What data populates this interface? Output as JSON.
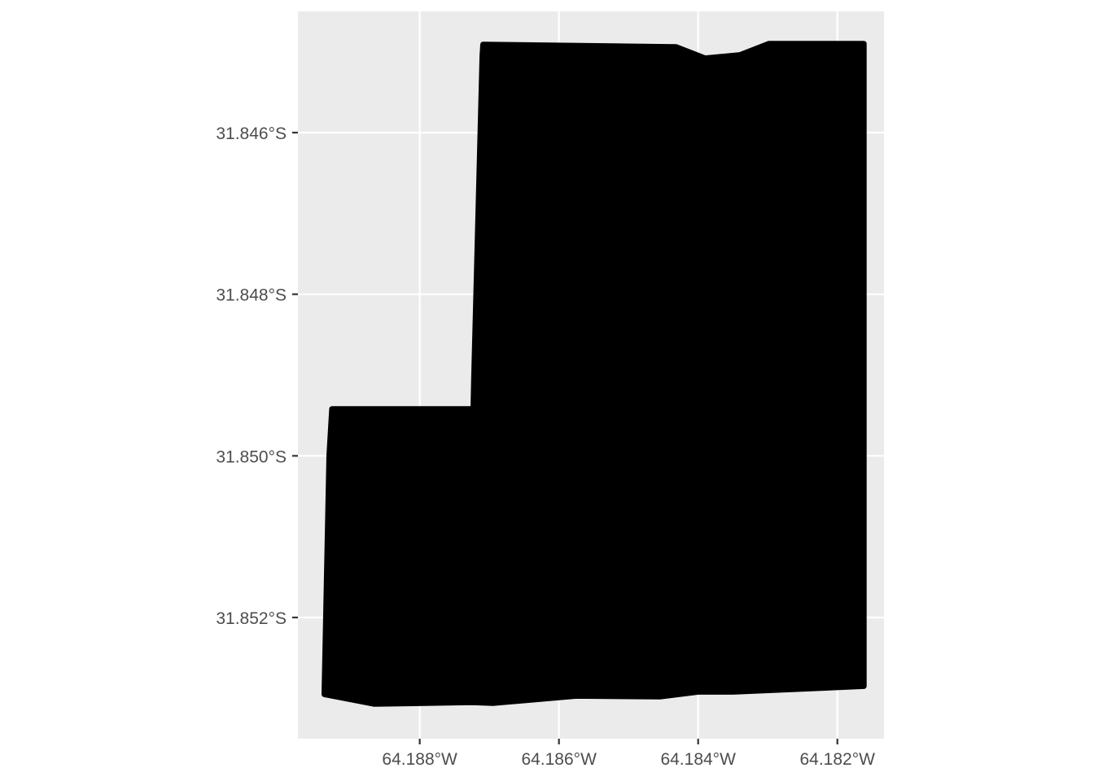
{
  "chart_data": {
    "type": "map",
    "title": "",
    "xlabel": "",
    "ylabel": "",
    "grid": true,
    "legend": "none",
    "colors": {
      "panel": "#ebebeb",
      "grid": "#ffffff",
      "fill": "#000000",
      "text": "#4d4d4d",
      "ticks": "#333333"
    },
    "x_axis": {
      "lim": [
        -64.18975,
        -64.18133
      ],
      "ticks": [
        -64.188,
        -64.186,
        -64.184,
        -64.182
      ],
      "tick_labels": [
        "64.188°W",
        "64.186°W",
        "64.184°W",
        "64.182°W"
      ]
    },
    "y_axis": {
      "lim": [
        -31.8535,
        -31.8445
      ],
      "ticks": [
        -31.846,
        -31.848,
        -31.85,
        -31.852
      ],
      "tick_labels": [
        "31.846°S",
        "31.848°S",
        "31.850°S",
        "31.852°S"
      ]
    },
    "polygon": {
      "name": "",
      "coordinates": [
        [
          -64.18709,
          -31.84491
        ],
        [
          -64.18432,
          -31.84494
        ],
        [
          -64.1839,
          -31.84508
        ],
        [
          -64.1834,
          -31.84504
        ],
        [
          -64.18298,
          -31.8449
        ],
        [
          -64.18162,
          -31.8449
        ],
        [
          -64.18162,
          -31.85285
        ],
        [
          -64.1835,
          -31.85292
        ],
        [
          -64.184,
          -31.85292
        ],
        [
          -64.18455,
          -31.85298
        ],
        [
          -64.18575,
          -31.85297
        ],
        [
          -64.18695,
          -31.85306
        ],
        [
          -64.18725,
          -31.85305
        ],
        [
          -64.18865,
          -31.85307
        ],
        [
          -64.18937,
          -31.85295
        ],
        [
          -64.1893,
          -31.85
        ],
        [
          -64.18926,
          -31.84942
        ],
        [
          -64.18723,
          -31.84942
        ],
        [
          -64.18722,
          -31.84905
        ],
        [
          -64.1871,
          -31.84505
        ]
      ]
    }
  }
}
